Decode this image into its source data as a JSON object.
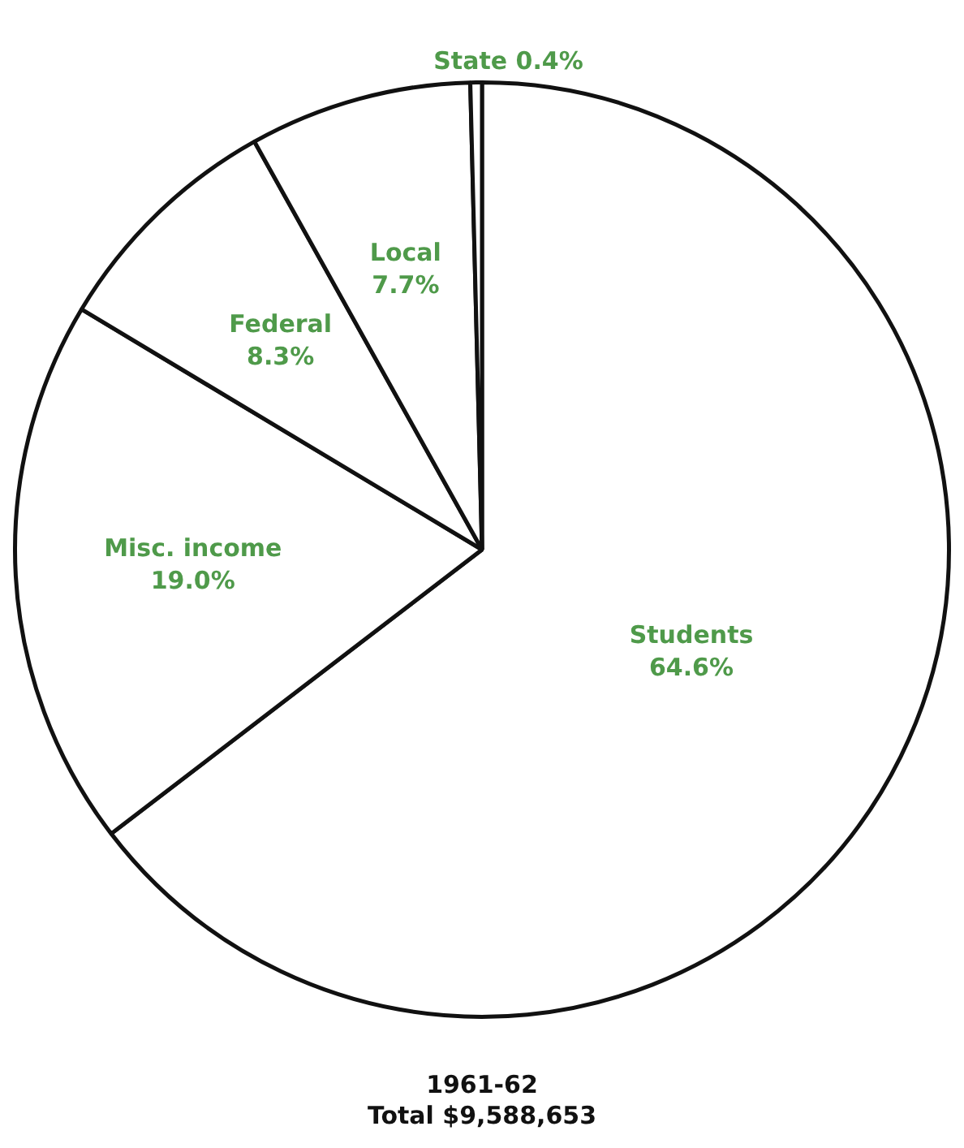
{
  "chart_data": {
    "type": "pie",
    "title": "1961-62",
    "subtitle": "Total $9,588,653",
    "categories": [
      "Students",
      "Misc. income",
      "Federal",
      "Local",
      "State"
    ],
    "values": [
      64.6,
      19.0,
      8.3,
      7.7,
      0.4
    ],
    "colors": [
      "#ffffff",
      "#ffffff",
      "#ffffff",
      "#ffffff",
      "#ffffff"
    ],
    "value_labels": [
      "64.6%",
      "19.0%",
      "8.3%",
      "7.7%",
      "0.4%"
    ]
  }
}
